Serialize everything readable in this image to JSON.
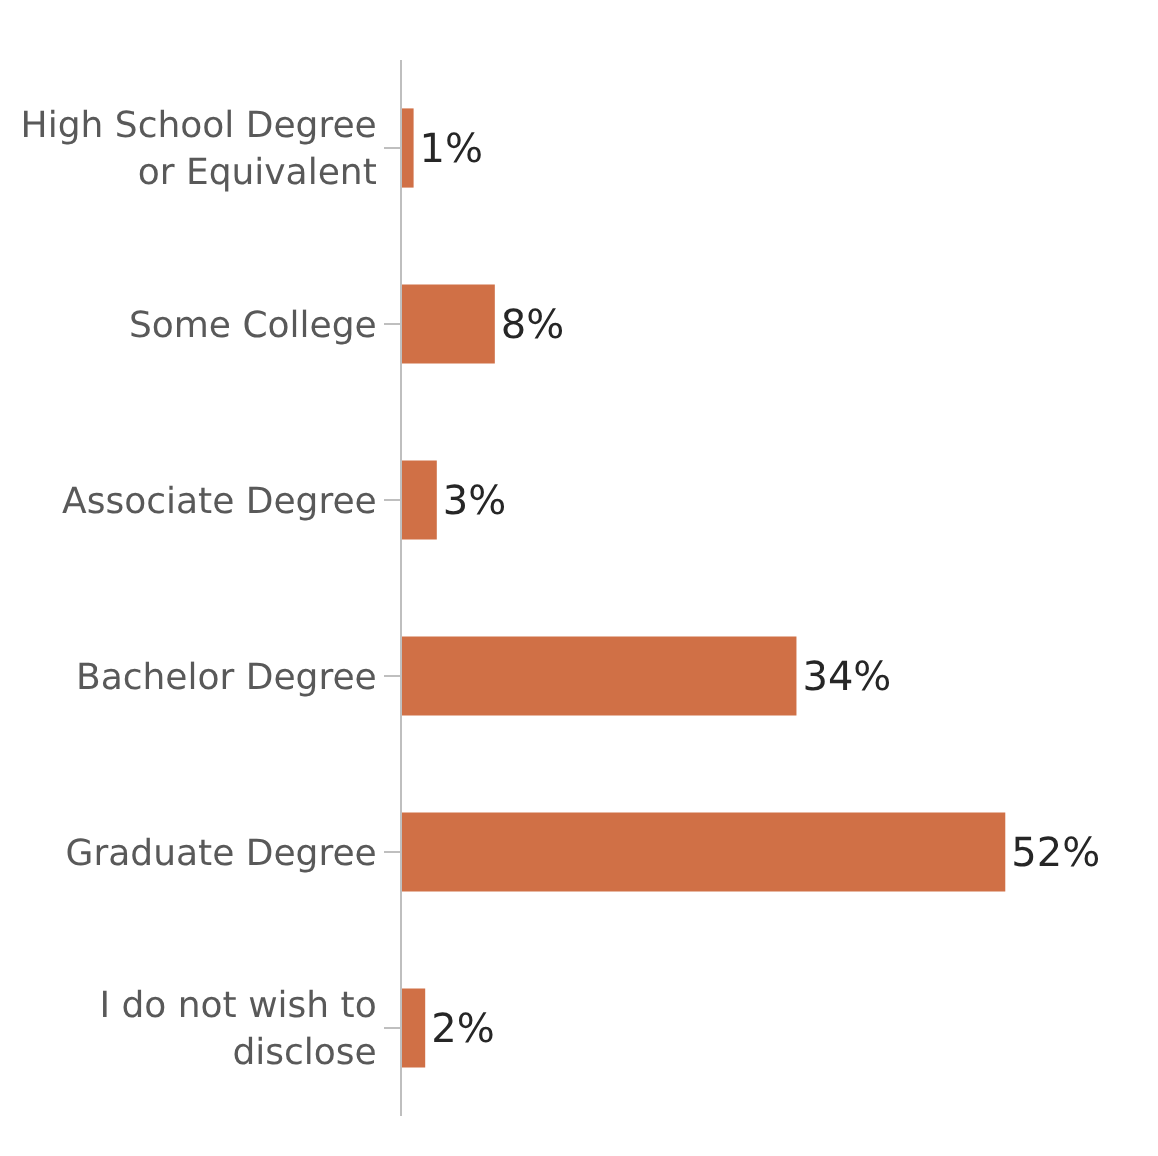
{
  "chart_data": {
    "type": "bar",
    "orientation": "horizontal",
    "categories": [
      "High School Degree or Equivalent",
      "Some College",
      "Associate Degree",
      "Bachelor Degree",
      "Graduate Degree",
      "I do not wish to disclose"
    ],
    "values": [
      1,
      8,
      3,
      34,
      52,
      2
    ],
    "value_labels": [
      "1%",
      "8%",
      "3%",
      "34%",
      "52%",
      "2%"
    ],
    "color": "#d07046",
    "tick_labels": "y"
  }
}
